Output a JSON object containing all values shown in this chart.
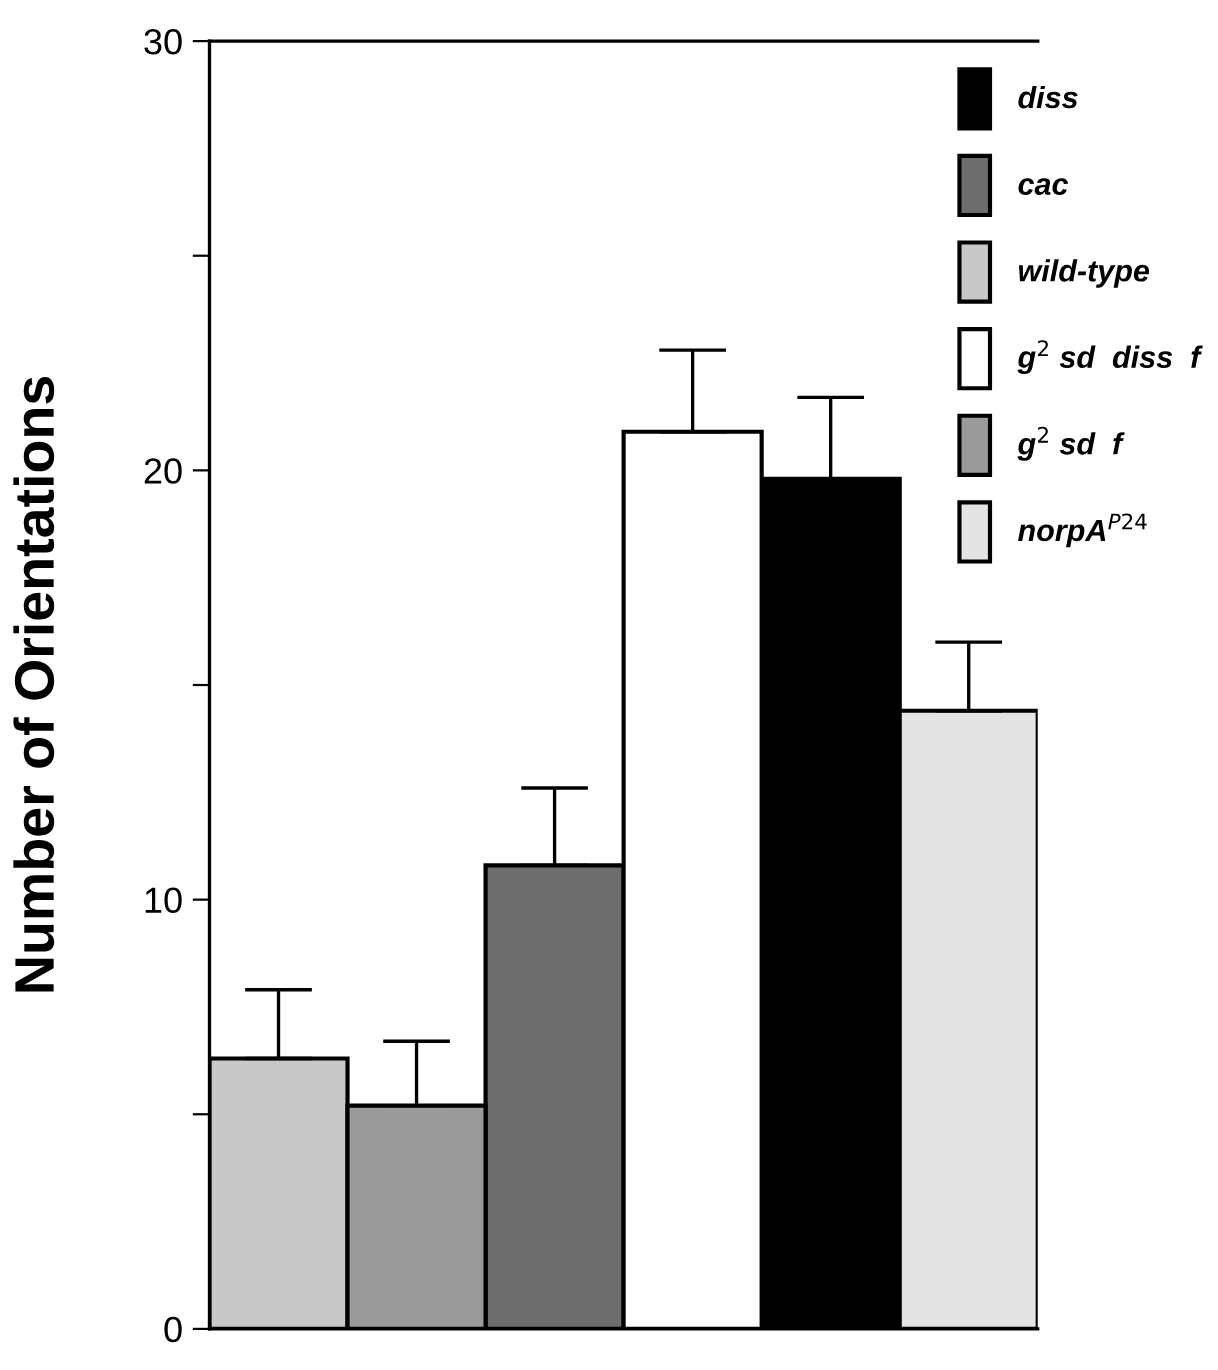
{
  "chart_data": {
    "type": "bar",
    "ylabel": "Number of Orientations",
    "categories": [
      null,
      null,
      null,
      null,
      null,
      null
    ],
    "series": [
      {
        "name": "diss",
        "color": "#000000",
        "values": [
          null,
          null,
          null,
          null,
          19.8,
          null
        ],
        "errors": [
          null,
          null,
          null,
          null,
          [
            19.8,
            21.7
          ],
          null
        ]
      },
      {
        "name": "cac",
        "color": "#6e6e6e",
        "values": [
          null,
          null,
          10.8,
          null,
          null,
          null
        ],
        "errors": [
          null,
          null,
          [
            10.8,
            12.6
          ],
          null,
          null,
          null
        ]
      },
      {
        "name": "wild-type",
        "color": "#c8c8c8",
        "values": [
          6.3,
          null,
          null,
          null,
          null,
          null
        ],
        "errors": [
          [
            6.3,
            7.9
          ],
          null,
          null,
          null,
          null,
          null
        ]
      },
      {
        "name": "g$^{2}$ sd  diss  f",
        "color": "#ffffff",
        "values": [
          null,
          null,
          null,
          20.9,
          null,
          null
        ],
        "errors": [
          null,
          null,
          null,
          [
            20.9,
            22.8
          ],
          null,
          null
        ]
      },
      {
        "name": "g$^{2}$ sd  f",
        "color": "#9a9a9a",
        "values": [
          null,
          5.2,
          null,
          null,
          null,
          null
        ],
        "errors": [
          null,
          [
            5.2,
            6.7
          ],
          null,
          null,
          null,
          null
        ]
      },
      {
        "name": "norpA$^{P24}$",
        "color": "#e4e4e4",
        "values": [
          null,
          null,
          null,
          null,
          null,
          14.4
        ],
        "errors": [
          null,
          null,
          null,
          null,
          null,
          [
            14.4,
            16.0
          ]
        ]
      }
    ],
    "ylim": [
      0,
      30
    ],
    "yticks": [
      0,
      {
        "value": 5,
        "label": null
      },
      10,
      {
        "value": 15,
        "label": null
      },
      20,
      {
        "value": 25,
        "label": null
      },
      30
    ],
    "grid": false,
    "legend": "top right"
  }
}
